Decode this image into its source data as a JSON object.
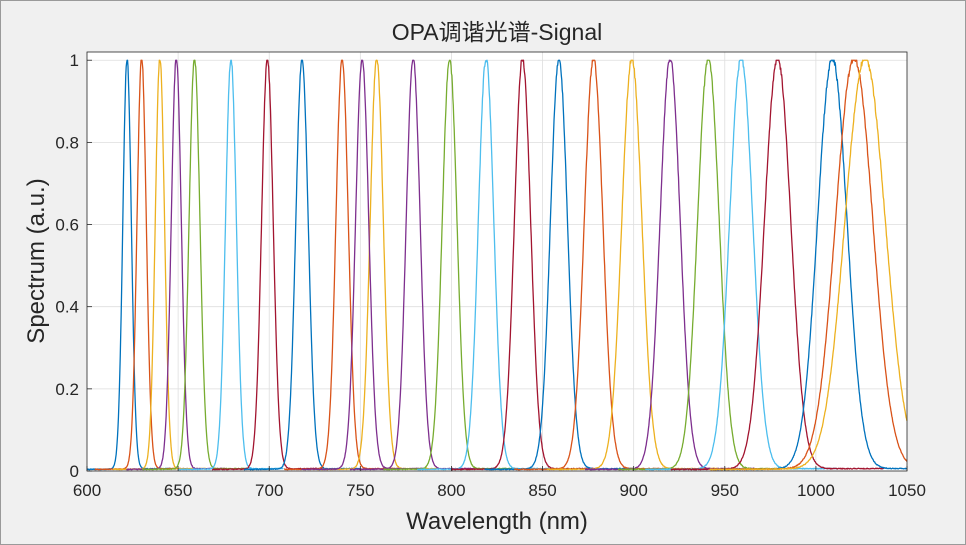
{
  "chart_data": {
    "type": "line",
    "title": "OPA调谐光谱-Signal",
    "xlabel": "Wavelength (nm)",
    "ylabel": "Spectrum (a.u.)",
    "xlim": [
      600,
      1050
    ],
    "ylim": [
      0,
      1.02
    ],
    "grid": true,
    "xticks": [
      600,
      650,
      700,
      750,
      800,
      850,
      900,
      950,
      1000,
      1050
    ],
    "xtick_labels": [
      "600",
      "650",
      "700",
      "750",
      "800",
      "850",
      "900",
      "950",
      "1000",
      "1050"
    ],
    "yticks": [
      0,
      0.2,
      0.4,
      0.6,
      0.8,
      1
    ],
    "ytick_labels": [
      "0",
      "0.2",
      "0.4",
      "0.6",
      "0.8",
      "1"
    ],
    "colors": {
      "blue": "#0072bd",
      "orange": "#d95319",
      "yellow": "#edb120",
      "purple": "#7e2f8e",
      "green": "#77ac30",
      "cyan": "#4dbeee",
      "red": "#a2142f"
    },
    "series": [
      {
        "name": "622 nm",
        "peak_nm": 622,
        "fwhm_nm": 5.5,
        "color": "blue"
      },
      {
        "name": "630 nm",
        "peak_nm": 630,
        "fwhm_nm": 6,
        "color": "orange"
      },
      {
        "name": "640 nm",
        "peak_nm": 640,
        "fwhm_nm": 6,
        "color": "yellow"
      },
      {
        "name": "649 nm",
        "peak_nm": 649,
        "fwhm_nm": 6.5,
        "color": "purple"
      },
      {
        "name": "659 nm",
        "peak_nm": 659,
        "fwhm_nm": 7,
        "color": "green"
      },
      {
        "name": "679 nm",
        "peak_nm": 679,
        "fwhm_nm": 7,
        "color": "cyan"
      },
      {
        "name": "699 nm",
        "peak_nm": 699,
        "fwhm_nm": 7.5,
        "color": "red"
      },
      {
        "name": "718 nm",
        "peak_nm": 718,
        "fwhm_nm": 8,
        "color": "blue"
      },
      {
        "name": "740 nm",
        "peak_nm": 740,
        "fwhm_nm": 8,
        "color": "orange"
      },
      {
        "name": "759 nm",
        "peak_nm": 759,
        "fwhm_nm": 8.5,
        "color": "yellow"
      },
      {
        "name": "751 nm",
        "peak_nm": 751,
        "fwhm_nm": 8.5,
        "color": "purple"
      },
      {
        "name": "779 nm",
        "peak_nm": 779,
        "fwhm_nm": 9,
        "color": "purple"
      },
      {
        "name": "799 nm",
        "peak_nm": 799,
        "fwhm_nm": 9.5,
        "color": "green"
      },
      {
        "name": "819 nm",
        "peak_nm": 819,
        "fwhm_nm": 10,
        "color": "cyan"
      },
      {
        "name": "839 nm",
        "peak_nm": 839,
        "fwhm_nm": 10.5,
        "color": "red"
      },
      {
        "name": "859 nm",
        "peak_nm": 859,
        "fwhm_nm": 11,
        "color": "blue"
      },
      {
        "name": "878 nm",
        "peak_nm": 878,
        "fwhm_nm": 12,
        "color": "orange"
      },
      {
        "name": "899 nm",
        "peak_nm": 899,
        "fwhm_nm": 13,
        "color": "yellow"
      },
      {
        "name": "920 nm",
        "peak_nm": 920,
        "fwhm_nm": 13,
        "color": "purple"
      },
      {
        "name": "941 nm",
        "peak_nm": 941,
        "fwhm_nm": 14,
        "color": "green"
      },
      {
        "name": "959 nm",
        "peak_nm": 959,
        "fwhm_nm": 15,
        "color": "cyan"
      },
      {
        "name": "979 nm",
        "peak_nm": 979,
        "fwhm_nm": 17,
        "color": "red"
      },
      {
        "name": "1009 nm",
        "peak_nm": 1009,
        "fwhm_nm": 19,
        "color": "blue"
      },
      {
        "name": "1021 nm",
        "peak_nm": 1021,
        "fwhm_nm": 24,
        "color": "orange"
      },
      {
        "name": "1027 nm",
        "peak_nm": 1027,
        "fwhm_nm": 26,
        "color": "yellow"
      }
    ]
  }
}
